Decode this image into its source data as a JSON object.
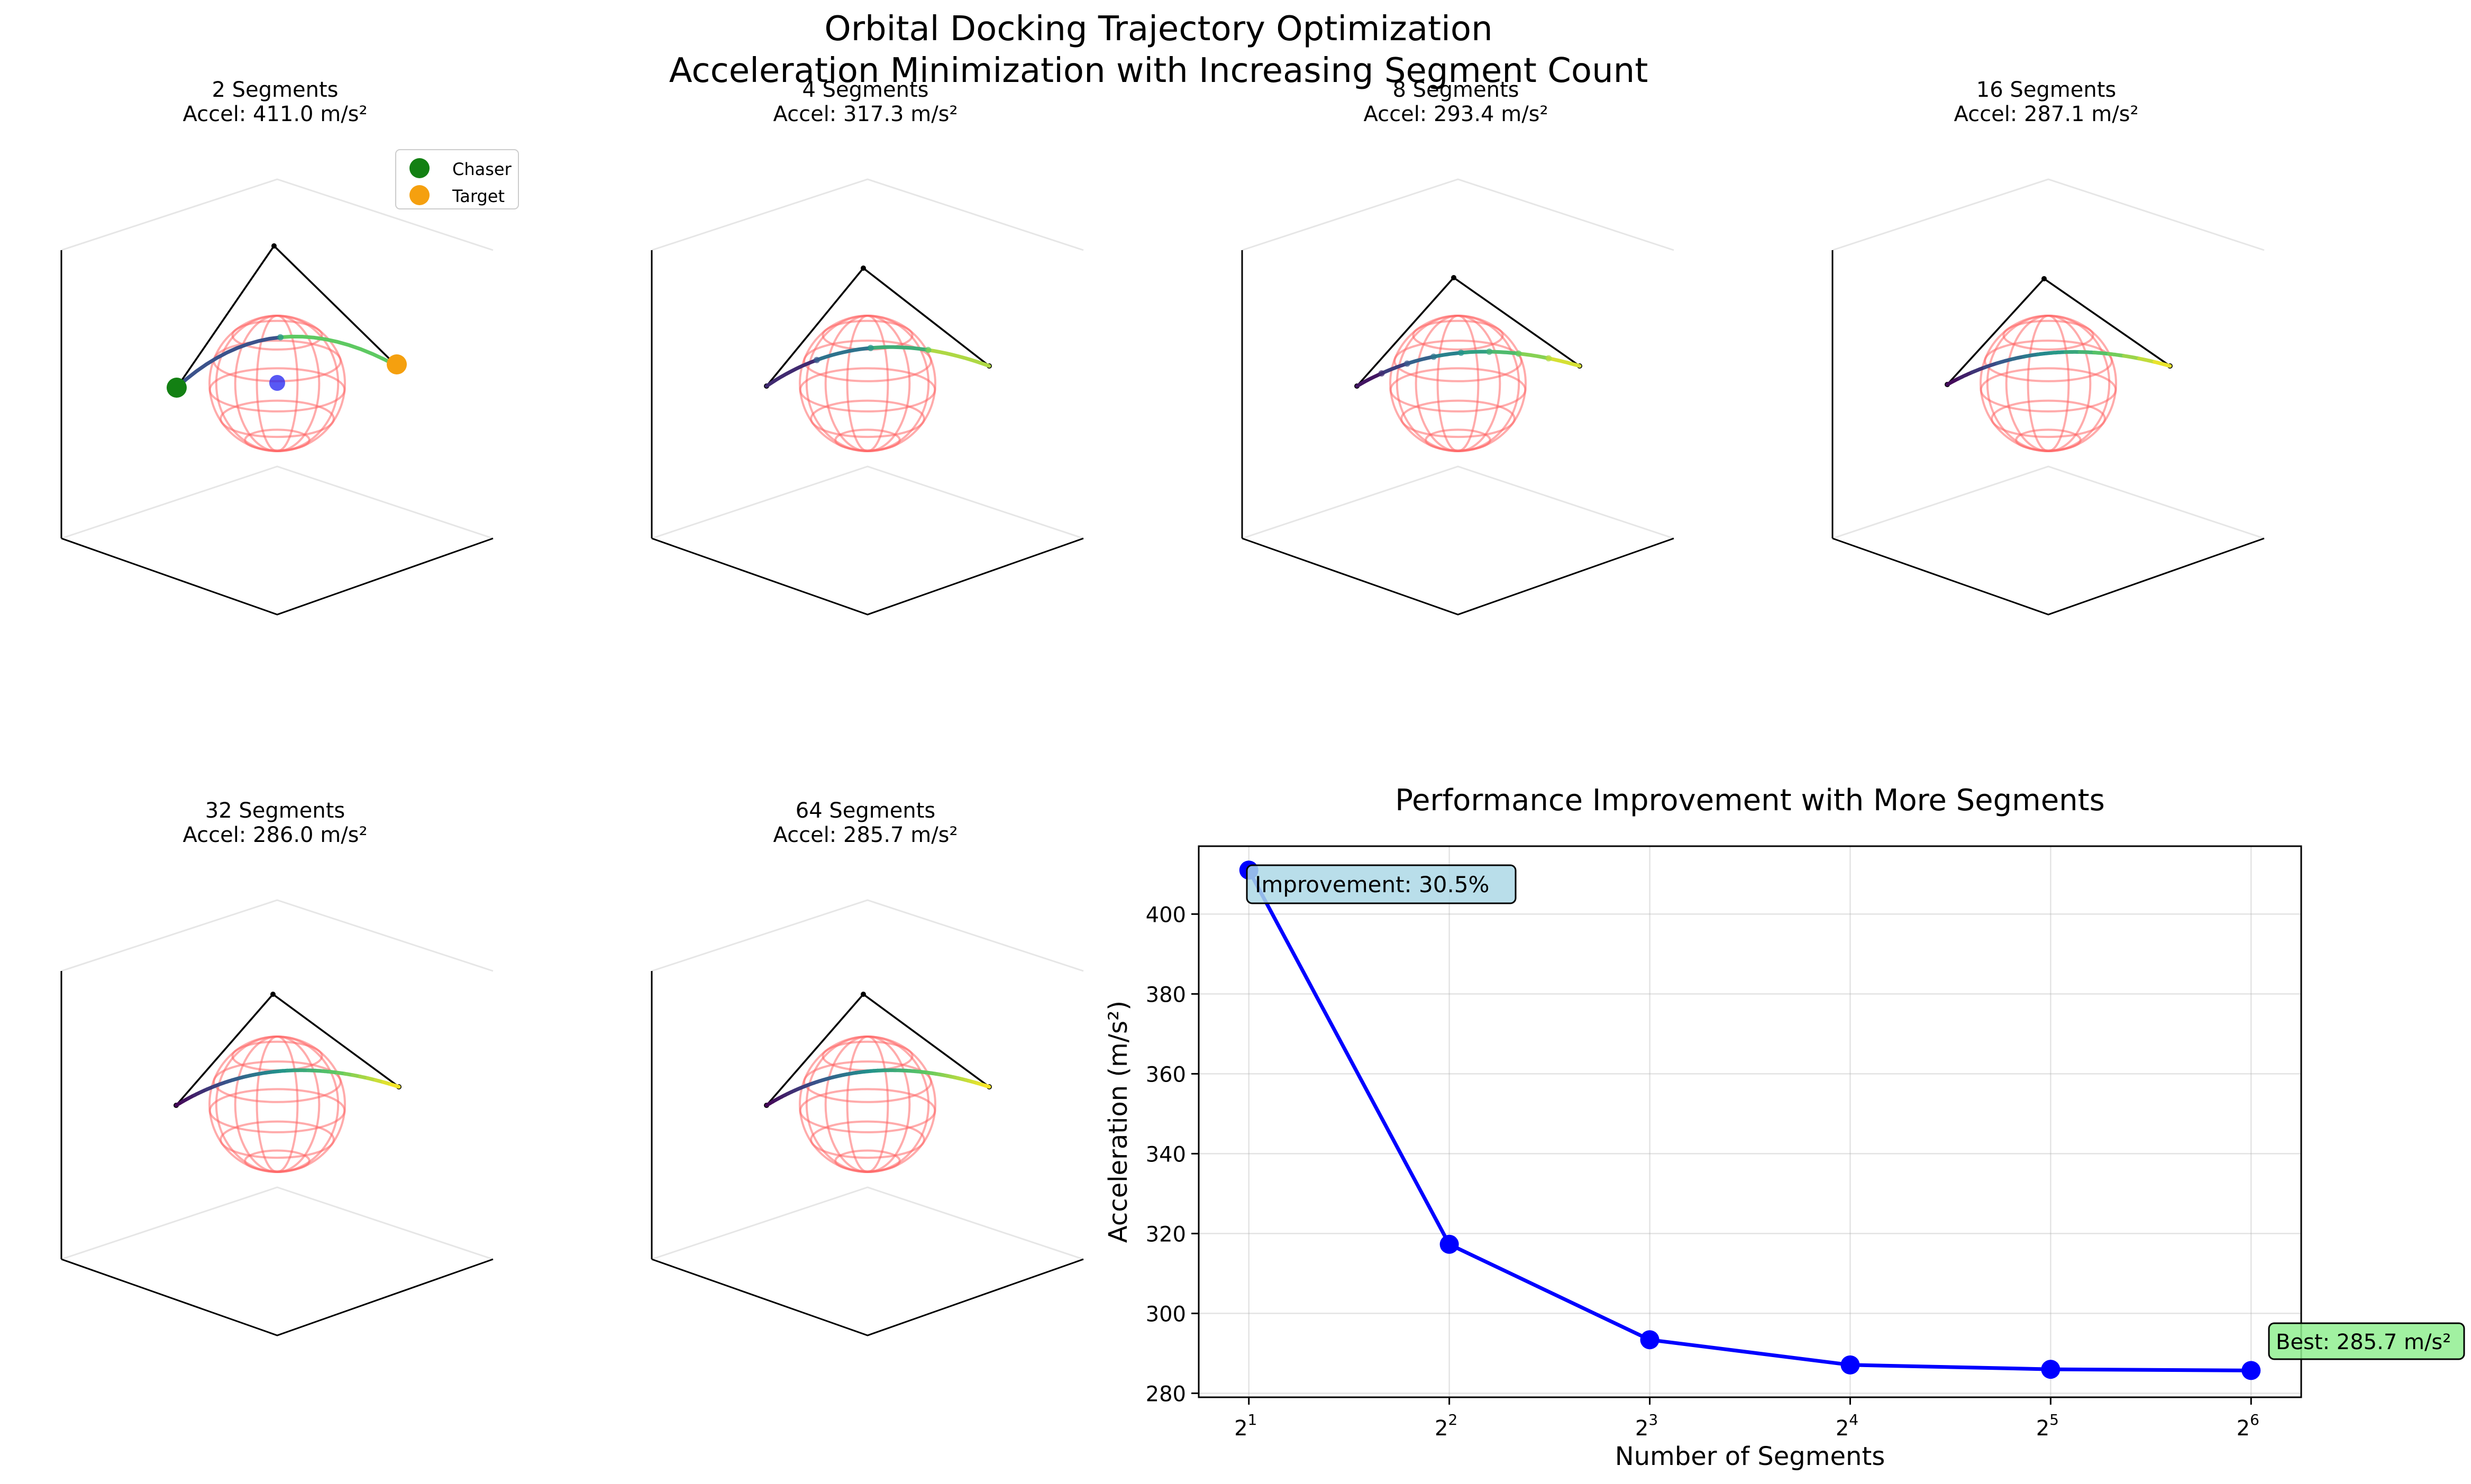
{
  "figure": {
    "title_line1": "Orbital Docking Trajectory Optimization",
    "title_line2": "Acceleration Minimization with Increasing Segment Count"
  },
  "legend": {
    "chaser": "Chaser",
    "target": "Target"
  },
  "colors": {
    "control_polygon": "#000000",
    "sphere": "#ff6666",
    "chaser": "#138013",
    "target": "#f5a00f",
    "center": "#2020f0",
    "line": "#0000ff",
    "improvement_box": "#add8e6",
    "best_box": "#90ee90",
    "pane_edge": "#e6e6e6"
  },
  "panels": [
    {
      "segments": 2,
      "title_line1": "2 Segments",
      "title_line2": "Accel: 411.0 m/s²"
    },
    {
      "segments": 4,
      "title_line1": "4 Segments",
      "title_line2": "Accel: 317.3 m/s²"
    },
    {
      "segments": 8,
      "title_line1": "8 Segments",
      "title_line2": "Accel: 293.4 m/s²"
    },
    {
      "segments": 16,
      "title_line1": "16 Segments",
      "title_line2": "Accel: 287.1 m/s²"
    },
    {
      "segments": 32,
      "title_line1": "32 Segments",
      "title_line2": "Accel: 286.0 m/s²"
    },
    {
      "segments": 64,
      "title_line1": "64 Segments",
      "title_line2": "Accel: 285.7 m/s²"
    }
  ],
  "chart_data": {
    "type": "line",
    "title": "Performance Improvement with More Segments",
    "xlabel": "Number of Segments",
    "ylabel": "Acceleration (m/s²)",
    "x_scale": "log2",
    "x": [
      2,
      4,
      8,
      16,
      32,
      64
    ],
    "x_tick_labels": [
      {
        "base": "2",
        "exp": "1"
      },
      {
        "base": "2",
        "exp": "2"
      },
      {
        "base": "2",
        "exp": "3"
      },
      {
        "base": "2",
        "exp": "4"
      },
      {
        "base": "2",
        "exp": "5"
      },
      {
        "base": "2",
        "exp": "6"
      }
    ],
    "series": [
      {
        "values": [
          411.0,
          317.3,
          293.4,
          287.1,
          286.0,
          285.7
        ]
      }
    ],
    "ylim": [
      279,
      417
    ],
    "y_ticks": [
      280,
      300,
      320,
      340,
      360,
      380,
      400
    ],
    "grid": true,
    "annotations": [
      {
        "text": "Improvement: 30.5%",
        "x": 2,
        "y": 411.0
      },
      {
        "text": "Best: 285.7 m/s²",
        "x": 64,
        "y": 285.7
      }
    ]
  }
}
